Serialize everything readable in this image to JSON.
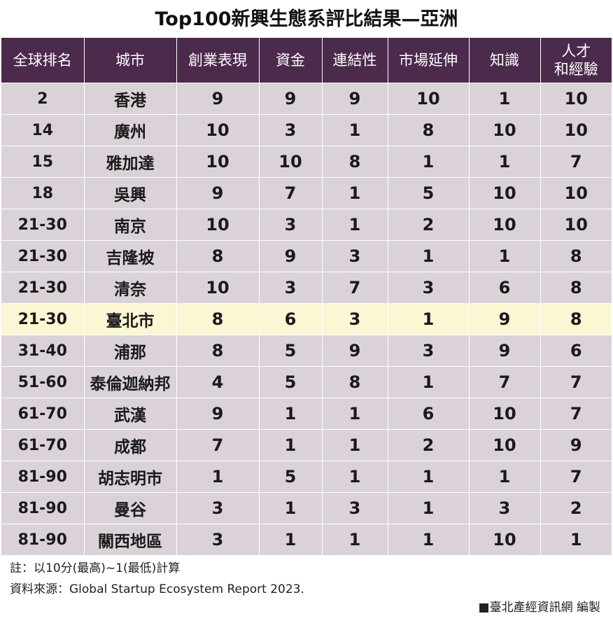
{
  "title": "Top100新興生態系評比結果—亞洲",
  "table": {
    "headers": [
      "全球排名",
      "城市",
      "創業表現",
      "資金",
      "連結性",
      "市場延伸",
      "知識",
      "人才\n和經驗"
    ],
    "rows": [
      [
        "2",
        "香港",
        "9",
        "9",
        "9",
        "10",
        "1",
        "10"
      ],
      [
        "14",
        "廣州",
        "10",
        "3",
        "1",
        "8",
        "10",
        "10"
      ],
      [
        "15",
        "雅加達",
        "10",
        "10",
        "8",
        "1",
        "1",
        "7"
      ],
      [
        "18",
        "吳興",
        "9",
        "7",
        "1",
        "5",
        "10",
        "10"
      ],
      [
        "21-30",
        "南京",
        "10",
        "3",
        "1",
        "2",
        "10",
        "10"
      ],
      [
        "21-30",
        "吉隆坡",
        "8",
        "9",
        "3",
        "1",
        "1",
        "8"
      ],
      [
        "21-30",
        "清奈",
        "10",
        "3",
        "7",
        "3",
        "6",
        "8"
      ],
      [
        "21-30",
        "臺北市",
        "8",
        "6",
        "3",
        "1",
        "9",
        "8"
      ],
      [
        "31-40",
        "浦那",
        "8",
        "5",
        "9",
        "3",
        "9",
        "6"
      ],
      [
        "51-60",
        "泰倫迦納邦",
        "4",
        "5",
        "8",
        "1",
        "7",
        "7"
      ],
      [
        "61-70",
        "武漢",
        "9",
        "1",
        "1",
        "6",
        "10",
        "7"
      ],
      [
        "61-70",
        "成都",
        "7",
        "1",
        "1",
        "2",
        "10",
        "9"
      ],
      [
        "81-90",
        "胡志明市",
        "1",
        "5",
        "1",
        "1",
        "1",
        "7"
      ],
      [
        "81-90",
        "曼谷",
        "3",
        "1",
        "3",
        "1",
        "3",
        "2"
      ],
      [
        "81-90",
        "關西地區",
        "3",
        "1",
        "1",
        "1",
        "10",
        "1"
      ]
    ],
    "highlight_row": 7,
    "colors": {
      "header_bg": "#4b2a4c",
      "row_bg": "#dad2d8",
      "highlight_bg": "#fbf6d4"
    }
  },
  "notes": {
    "scale": "註：以10分(最高)~1(最低)計算",
    "source": "資料來源：Global Startup Ecosystem Report 2023."
  },
  "credit": "■臺北產經資訊網 編製"
}
